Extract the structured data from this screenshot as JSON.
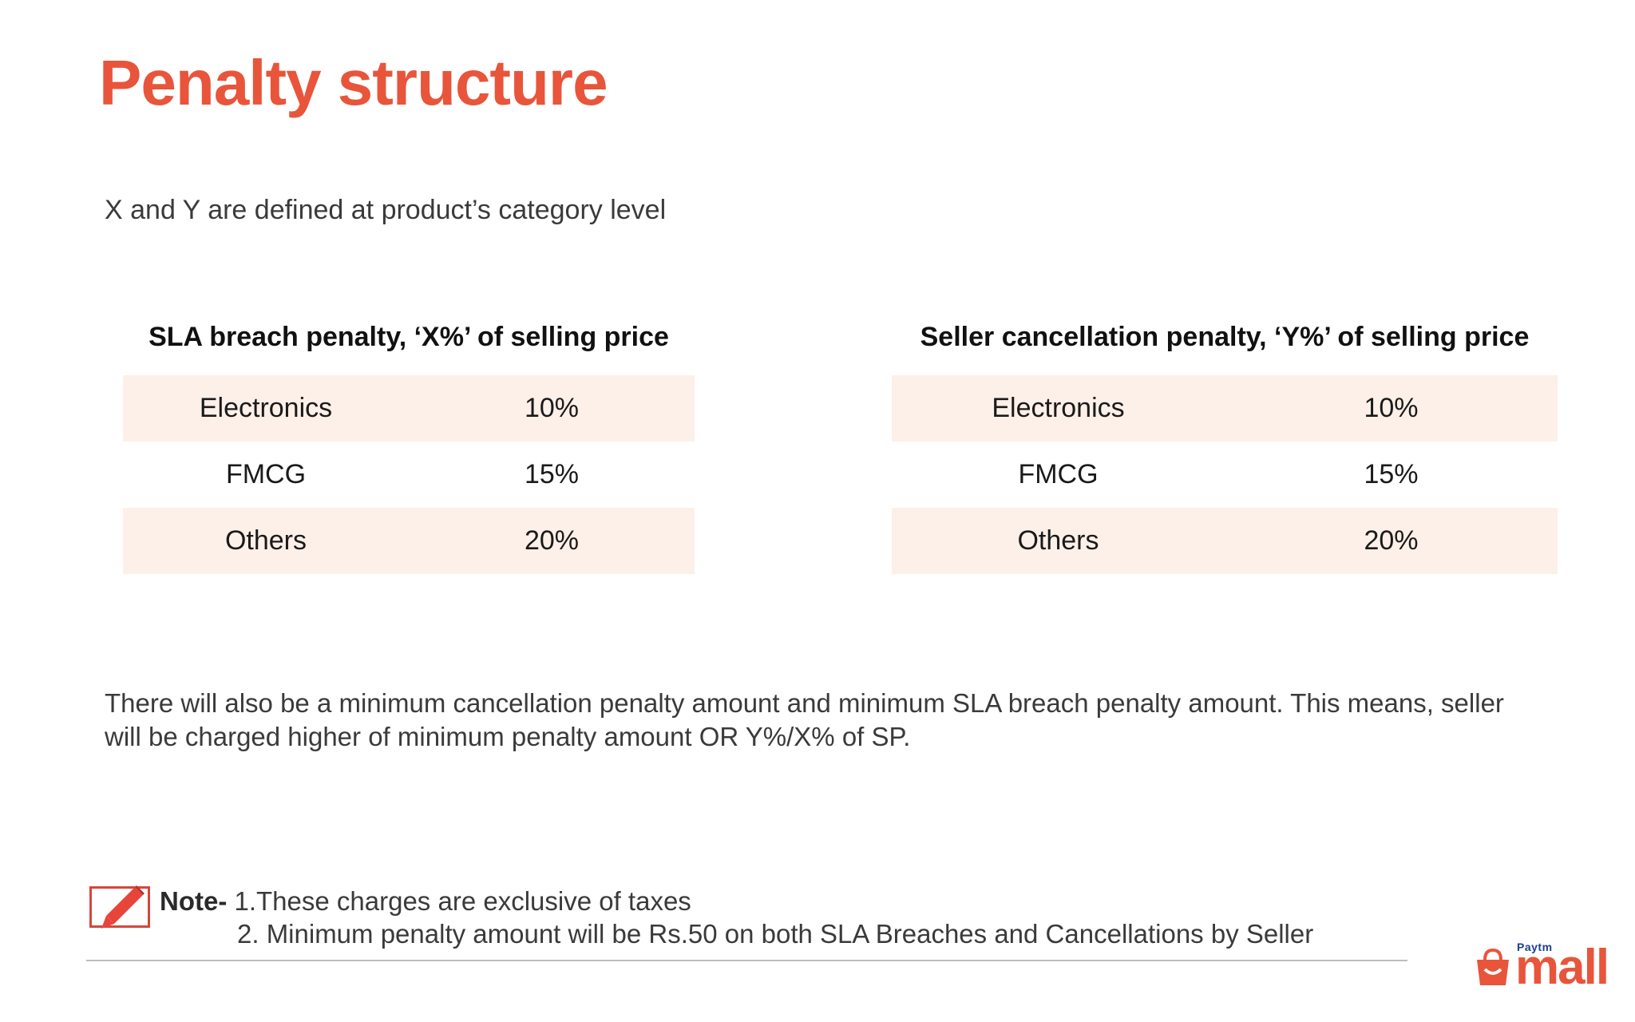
{
  "slide": {
    "title": "Penalty structure",
    "subtitle": "X and Y are defined at product’s category level"
  },
  "tables": [
    {
      "heading": "SLA breach penalty, ‘X%’ of selling price",
      "rows": [
        {
          "category": "Electronics",
          "value": "10%"
        },
        {
          "category": "FMCG",
          "value": "15%"
        },
        {
          "category": "Others",
          "value": "20%"
        }
      ]
    },
    {
      "heading": "Seller cancellation penalty, ‘Y%’ of selling price",
      "rows": [
        {
          "category": "Electronics",
          "value": "10%"
        },
        {
          "category": "FMCG",
          "value": "15%"
        },
        {
          "category": "Others",
          "value": "20%"
        }
      ]
    }
  ],
  "paragraph": "There will also be a minimum cancellation penalty amount and minimum SLA breach penalty amount. This means, seller will be charged higher of minimum penalty amount OR Y%/X% of SP.",
  "note": {
    "label": "Note-",
    "line1": "1.These charges are exclusive of taxes",
    "line2": "2. Minimum penalty amount will be Rs.50 on both SLA Breaches and Cancellations by Seller"
  },
  "logo": {
    "small": "Paytm",
    "big": "mall"
  },
  "colors": {
    "accent": "#e8553b",
    "row_shade": "#fdf0e8",
    "brand_blue": "#1c3f8f"
  },
  "icons": {
    "note": "pencil-note-icon",
    "logo": "shopping-bag-icon"
  }
}
